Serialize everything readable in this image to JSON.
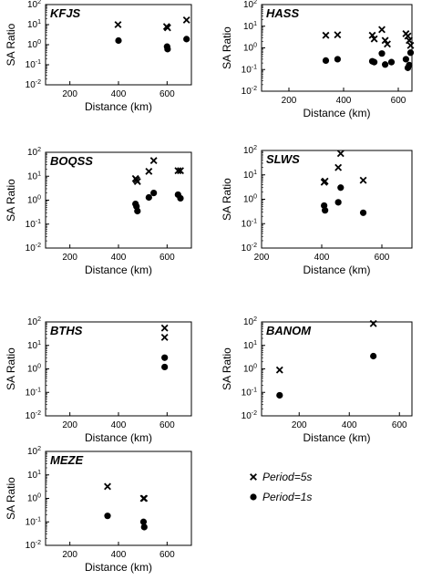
{
  "legend": {
    "items": [
      {
        "marker": "x",
        "label": "Period=5s"
      },
      {
        "marker": "dot",
        "label": "Period=1s"
      }
    ]
  },
  "chart_data": [
    {
      "type": "scatter",
      "title": "KFJS",
      "xlabel": "Distance (km)",
      "ylabel": "SA Ratio",
      "xlim": [
        100,
        700
      ],
      "ylim": [
        0.01,
        100
      ],
      "yscale": "log",
      "xticks": [
        "200",
        "400",
        "600"
      ],
      "series": [
        {
          "name": "Period=5s",
          "marker": "x",
          "x": [
            398,
            598,
            602,
            680
          ],
          "y": [
            10,
            8,
            7,
            17
          ]
        },
        {
          "name": "Period=1s",
          "marker": "dot",
          "x": [
            400,
            600,
            602,
            680
          ],
          "y": [
            1.6,
            0.8,
            0.6,
            1.9
          ]
        }
      ]
    },
    {
      "type": "scatter",
      "title": "HASS",
      "xlabel": "Distance (km)",
      "ylabel": "SA Ratio",
      "xlim": [
        100,
        650
      ],
      "ylim": [
        0.01,
        100
      ],
      "yscale": "log",
      "xticks": [
        "200",
        "400",
        "600"
      ],
      "series": [
        {
          "name": "Period=5s",
          "marker": "x",
          "x": [
            335,
            378,
            505,
            512,
            540,
            552,
            560,
            628,
            635,
            640,
            645
          ],
          "y": [
            3.8,
            4.0,
            3.8,
            2.6,
            7.0,
            2.2,
            1.5,
            4.5,
            3.5,
            2.2,
            1.3
          ]
        },
        {
          "name": "Period=1s",
          "marker": "dot",
          "x": [
            335,
            378,
            505,
            512,
            540,
            552,
            575,
            628,
            635,
            640,
            645
          ],
          "y": [
            0.26,
            0.3,
            0.24,
            0.22,
            0.55,
            0.17,
            0.22,
            0.3,
            0.12,
            0.16,
            0.6
          ]
        }
      ]
    },
    {
      "type": "scatter",
      "title": "BOQSS",
      "xlabel": "Distance (km)",
      "ylabel": "SA Ratio",
      "xlim": [
        100,
        700
      ],
      "ylim": [
        0.01,
        100
      ],
      "yscale": "log",
      "xticks": [
        "200",
        "400",
        "600"
      ],
      "series": [
        {
          "name": "Period=5s",
          "marker": "x",
          "x": [
            470,
            474,
            478,
            525,
            545,
            645,
            655
          ],
          "y": [
            8,
            7,
            6,
            16,
            45,
            17,
            17
          ]
        },
        {
          "name": "Period=1s",
          "marker": "dot",
          "x": [
            470,
            474,
            478,
            525,
            545,
            645,
            655
          ],
          "y": [
            0.7,
            0.55,
            0.35,
            1.3,
            2.0,
            1.7,
            1.2
          ]
        }
      ]
    },
    {
      "type": "scatter",
      "title": "SLWS",
      "xlabel": "Distance (km)",
      "ylabel": "SA Ratio",
      "xlim": [
        200,
        700
      ],
      "ylim": [
        0.01,
        100
      ],
      "yscale": "log",
      "xticks": [
        "200",
        "400",
        "600"
      ],
      "series": [
        {
          "name": "Period=5s",
          "marker": "x",
          "x": [
            408,
            411,
            455,
            463,
            538
          ],
          "y": [
            5.0,
            5.5,
            20,
            75,
            6
          ]
        },
        {
          "name": "Period=1s",
          "marker": "dot",
          "x": [
            408,
            411,
            455,
            463,
            538
          ],
          "y": [
            0.55,
            0.35,
            0.75,
            3.0,
            0.28
          ]
        }
      ]
    },
    {
      "type": "scatter",
      "title": "BTHS",
      "xlabel": "Distance (km)",
      "ylabel": "SA Ratio",
      "xlim": [
        100,
        700
      ],
      "ylim": [
        0.01,
        100
      ],
      "yscale": "log",
      "xticks": [
        "200",
        "400",
        "600"
      ],
      "series": [
        {
          "name": "Period=5s",
          "marker": "x",
          "x": [
            590,
            590
          ],
          "y": [
            55,
            22
          ]
        },
        {
          "name": "Period=1s",
          "marker": "dot",
          "x": [
            590,
            590
          ],
          "y": [
            3.0,
            1.2
          ]
        }
      ]
    },
    {
      "type": "scatter",
      "title": "BANOM",
      "xlabel": "Distance (km)",
      "ylabel": "SA Ratio",
      "xlim": [
        50,
        650
      ],
      "ylim": [
        0.01,
        100
      ],
      "yscale": "log",
      "xticks": [
        "200",
        "400",
        "600"
      ],
      "series": [
        {
          "name": "Period=5s",
          "marker": "x",
          "x": [
            122,
            496
          ],
          "y": [
            0.9,
            85
          ]
        },
        {
          "name": "Period=1s",
          "marker": "dot",
          "x": [
            122,
            496
          ],
          "y": [
            0.075,
            3.5
          ]
        }
      ]
    },
    {
      "type": "scatter",
      "title": "MEZE",
      "xlabel": "Distance (km)",
      "ylabel": "SA Ratio",
      "xlim": [
        100,
        700
      ],
      "ylim": [
        0.01,
        100
      ],
      "yscale": "log",
      "xticks": [
        "200",
        "400",
        "600"
      ],
      "series": [
        {
          "name": "Period=5s",
          "marker": "x",
          "x": [
            355,
            503,
            506
          ],
          "y": [
            3.2,
            1.0,
            1.0
          ]
        },
        {
          "name": "Period=1s",
          "marker": "dot",
          "x": [
            355,
            503,
            506
          ],
          "y": [
            0.18,
            0.1,
            0.06
          ]
        }
      ]
    }
  ]
}
